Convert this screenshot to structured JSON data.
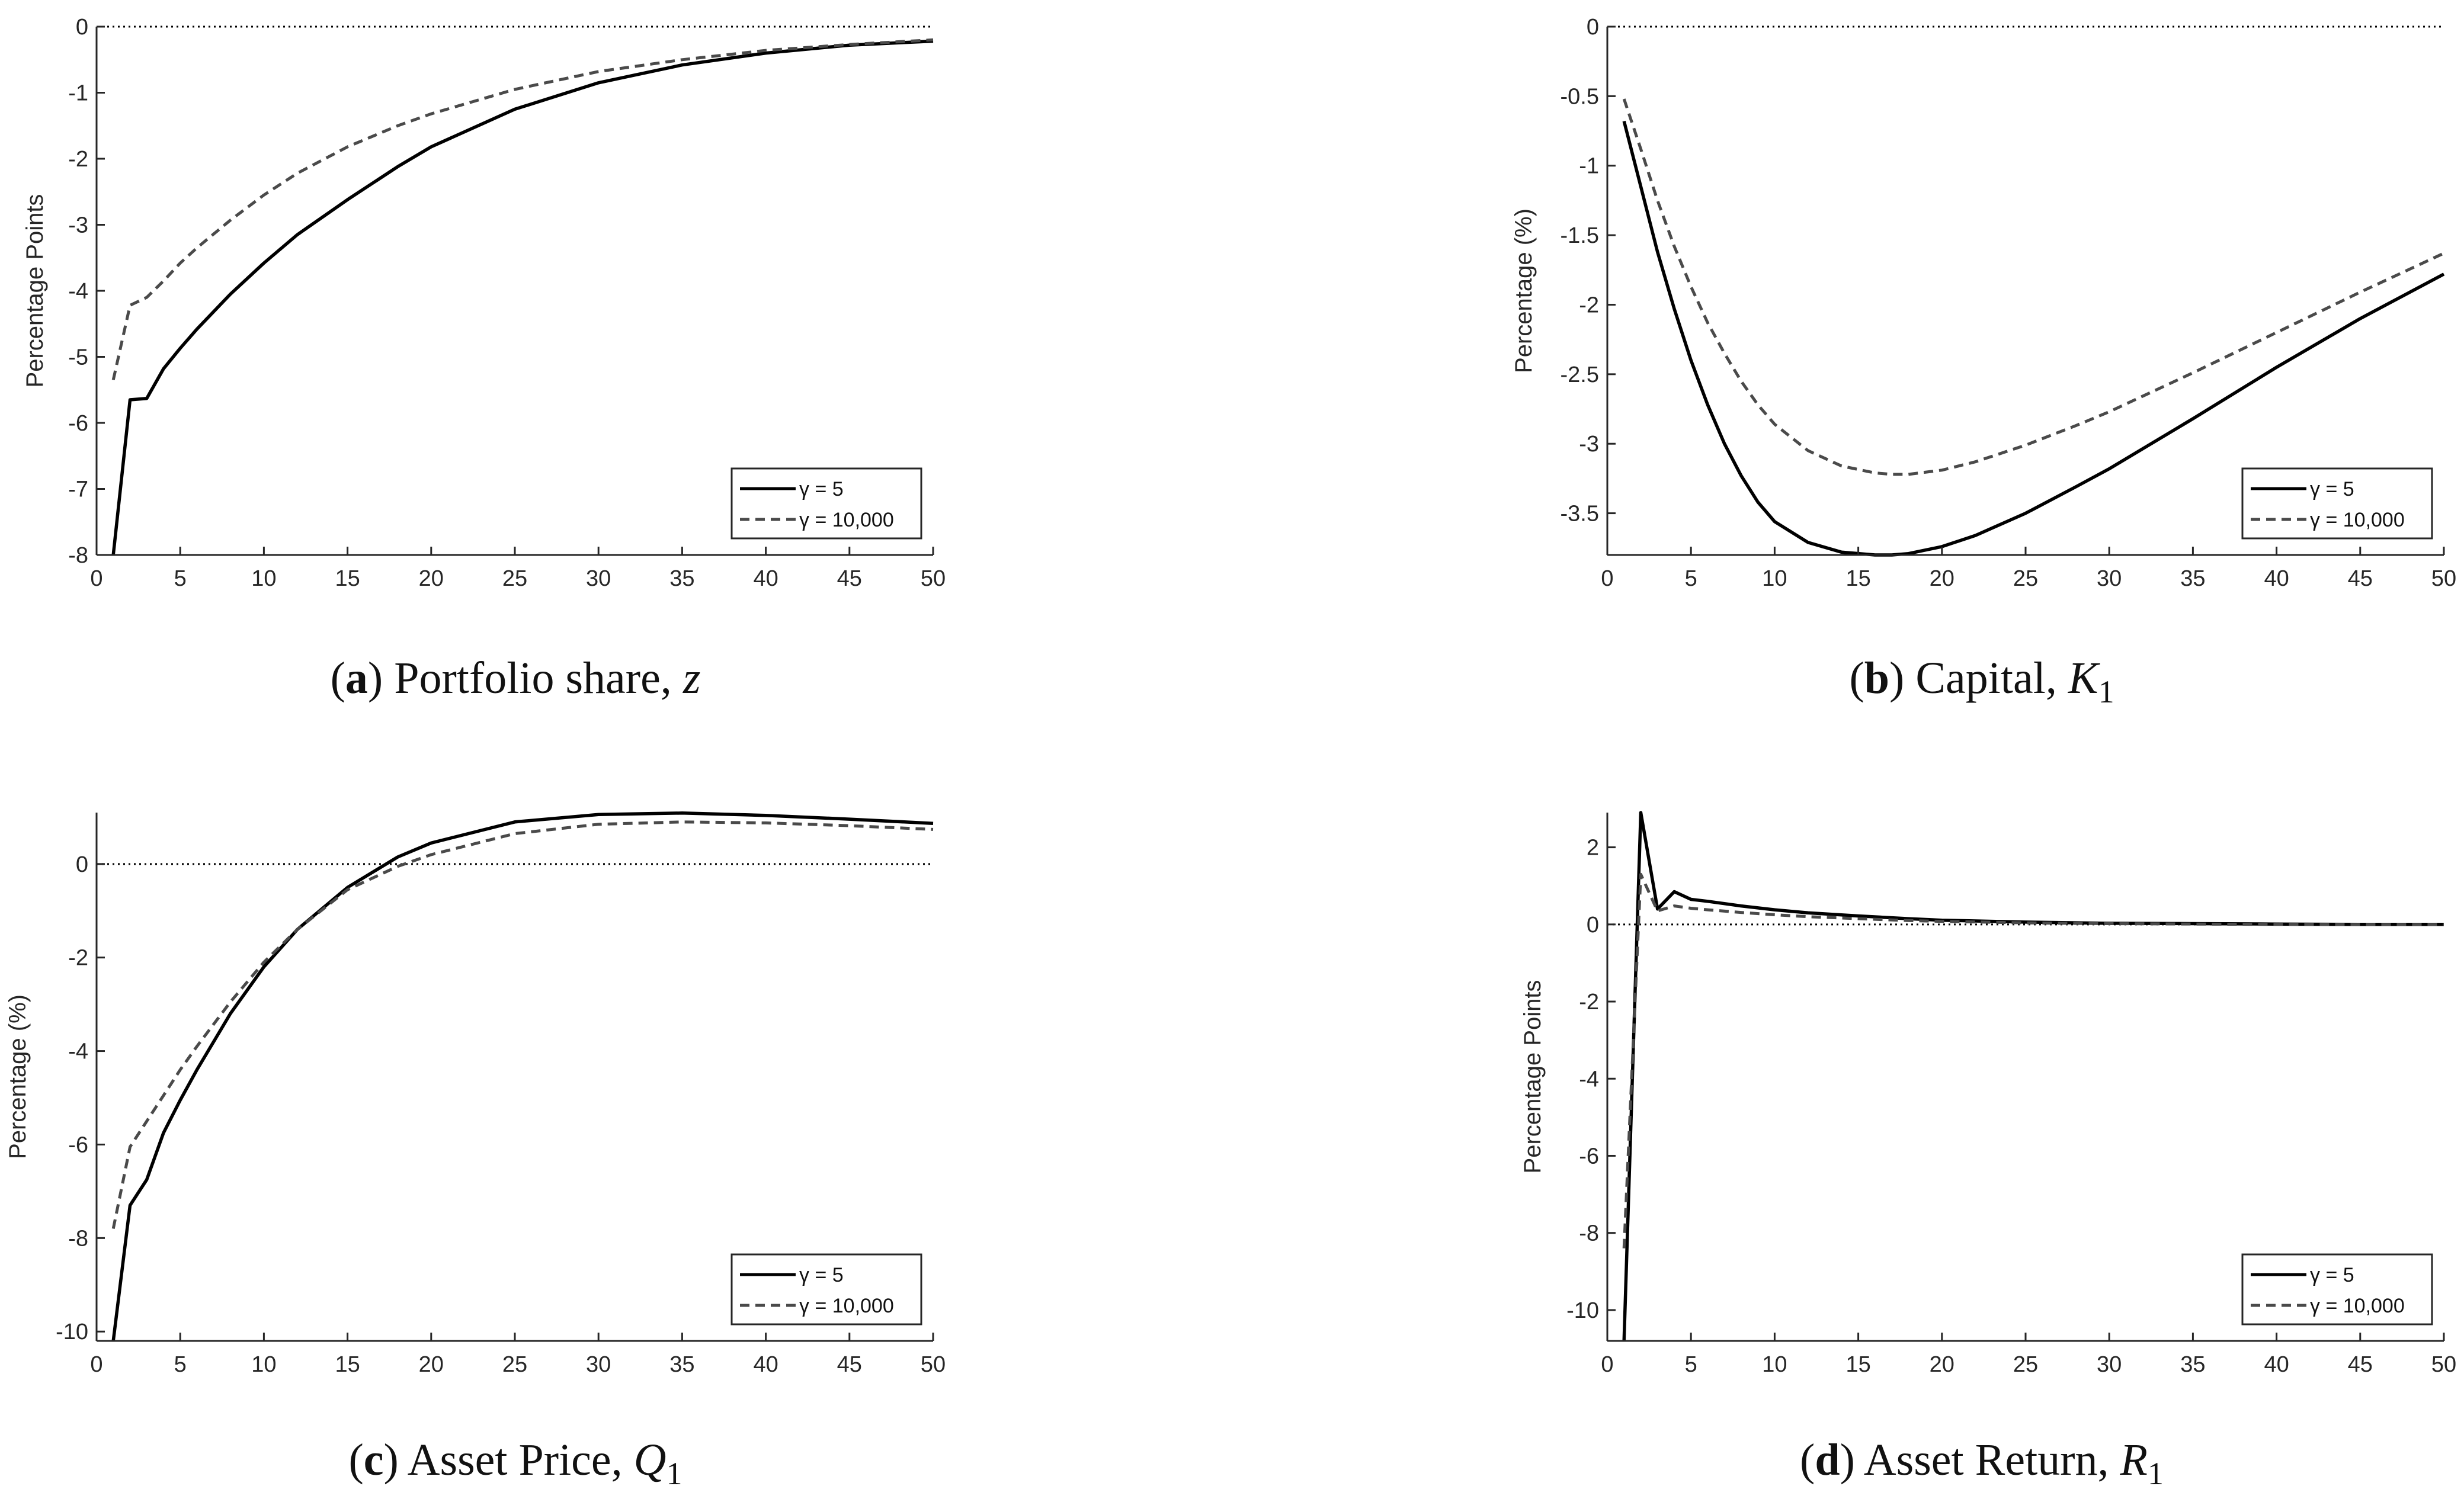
{
  "figure": {
    "panels": [
      {
        "id": "a",
        "caption_letter": "a",
        "caption_text": "Portfolio share, ",
        "caption_var": "z",
        "caption_sub": "",
        "ylabel": "Percentage Points"
      },
      {
        "id": "b",
        "caption_letter": "b",
        "caption_text": "Capital, ",
        "caption_var": "K",
        "caption_sub": "1",
        "ylabel": "Percentage (%)"
      },
      {
        "id": "c",
        "caption_letter": "c",
        "caption_text": "Asset Price, ",
        "caption_var": "Q",
        "caption_sub": "1",
        "ylabel": "Percentage (%)"
      },
      {
        "id": "d",
        "caption_letter": "d",
        "caption_text": "Asset Return, ",
        "caption_var": "R",
        "caption_sub": "1",
        "ylabel": "Percentage Points"
      }
    ]
  },
  "chart_data": [
    {
      "type": "line",
      "panel": "a",
      "title": "(a) Portfolio share, z",
      "xlabel": "",
      "ylabel": "Percentage Points",
      "xlim": [
        0,
        50
      ],
      "ylim": [
        -8,
        0
      ],
      "xticks": [
        "0",
        "5",
        "10",
        "15",
        "20",
        "25",
        "30",
        "35",
        "40",
        "45",
        "50"
      ],
      "yticks": [
        "0",
        "-1",
        "-2",
        "-3",
        "-4",
        "-5",
        "-6",
        "-7",
        "-8"
      ],
      "zero_line": true,
      "legend_position": "bottom-right",
      "series": [
        {
          "name": "γ = 5",
          "style": "solid",
          "points": [
            [
              1,
              -8.0
            ],
            [
              2,
              -5.65
            ],
            [
              3,
              -5.63
            ],
            [
              4,
              -5.18
            ],
            [
              5,
              -4.87
            ],
            [
              6,
              -4.58
            ],
            [
              8,
              -4.05
            ],
            [
              10,
              -3.58
            ],
            [
              12,
              -3.15
            ],
            [
              15,
              -2.62
            ],
            [
              18,
              -2.12
            ],
            [
              20,
              -1.82
            ],
            [
              25,
              -1.25
            ],
            [
              30,
              -0.85
            ],
            [
              35,
              -0.58
            ],
            [
              40,
              -0.4
            ],
            [
              45,
              -0.28
            ],
            [
              50,
              -0.22
            ]
          ]
        },
        {
          "name": "γ = 10,000",
          "style": "dashed",
          "points": [
            [
              1,
              -5.35
            ],
            [
              2,
              -4.22
            ],
            [
              3,
              -4.1
            ],
            [
              4,
              -3.85
            ],
            [
              5,
              -3.58
            ],
            [
              6,
              -3.35
            ],
            [
              8,
              -2.93
            ],
            [
              10,
              -2.55
            ],
            [
              12,
              -2.22
            ],
            [
              15,
              -1.82
            ],
            [
              18,
              -1.5
            ],
            [
              20,
              -1.32
            ],
            [
              25,
              -0.95
            ],
            [
              30,
              -0.68
            ],
            [
              35,
              -0.5
            ],
            [
              40,
              -0.36
            ],
            [
              45,
              -0.27
            ],
            [
              50,
              -0.2
            ]
          ]
        }
      ]
    },
    {
      "type": "line",
      "panel": "b",
      "title": "(b) Capital, K1",
      "xlabel": "",
      "ylabel": "Percentage (%)",
      "xlim": [
        0,
        50
      ],
      "ylim": [
        -3.8,
        0
      ],
      "xticks": [
        "0",
        "5",
        "10",
        "15",
        "20",
        "25",
        "30",
        "35",
        "40",
        "45",
        "50"
      ],
      "yticks": [
        "0",
        "-0.5",
        "-1",
        "-1.5",
        "-2",
        "-2.5",
        "-3",
        "-3.5"
      ],
      "zero_line": true,
      "legend_position": "bottom-right",
      "series": [
        {
          "name": "γ = 5",
          "style": "solid",
          "points": [
            [
              1,
              -0.68
            ],
            [
              2,
              -1.15
            ],
            [
              3,
              -1.62
            ],
            [
              4,
              -2.03
            ],
            [
              5,
              -2.4
            ],
            [
              6,
              -2.72
            ],
            [
              7,
              -3.0
            ],
            [
              8,
              -3.23
            ],
            [
              9,
              -3.42
            ],
            [
              10,
              -3.56
            ],
            [
              12,
              -3.71
            ],
            [
              14,
              -3.78
            ],
            [
              16,
              -3.8
            ],
            [
              17,
              -3.8
            ],
            [
              18,
              -3.79
            ],
            [
              20,
              -3.74
            ],
            [
              22,
              -3.66
            ],
            [
              25,
              -3.5
            ],
            [
              28,
              -3.31
            ],
            [
              30,
              -3.18
            ],
            [
              35,
              -2.82
            ],
            [
              40,
              -2.45
            ],
            [
              45,
              -2.1
            ],
            [
              50,
              -1.78
            ]
          ]
        },
        {
          "name": "γ = 10,000",
          "style": "dashed",
          "points": [
            [
              1,
              -0.52
            ],
            [
              2,
              -0.88
            ],
            [
              3,
              -1.25
            ],
            [
              4,
              -1.58
            ],
            [
              5,
              -1.87
            ],
            [
              6,
              -2.13
            ],
            [
              7,
              -2.35
            ],
            [
              8,
              -2.55
            ],
            [
              9,
              -2.72
            ],
            [
              10,
              -2.86
            ],
            [
              12,
              -3.05
            ],
            [
              14,
              -3.16
            ],
            [
              16,
              -3.21
            ],
            [
              17,
              -3.22
            ],
            [
              18,
              -3.22
            ],
            [
              20,
              -3.19
            ],
            [
              22,
              -3.13
            ],
            [
              25,
              -3.01
            ],
            [
              28,
              -2.87
            ],
            [
              30,
              -2.77
            ],
            [
              35,
              -2.49
            ],
            [
              40,
              -2.2
            ],
            [
              45,
              -1.91
            ],
            [
              50,
              -1.63
            ]
          ]
        }
      ]
    },
    {
      "type": "line",
      "panel": "c",
      "title": "(c) Asset Price, Q1",
      "xlabel": "",
      "ylabel": "Percentage (%)",
      "xlim": [
        0,
        50
      ],
      "ylim": [
        -10.2,
        1.1
      ],
      "xticks": [
        "0",
        "5",
        "10",
        "15",
        "20",
        "25",
        "30",
        "35",
        "40",
        "45",
        "50"
      ],
      "yticks": [
        "0",
        "-2",
        "-4",
        "-6",
        "-8",
        "-10"
      ],
      "zero_line": true,
      "legend_position": "bottom-right",
      "series": [
        {
          "name": "γ = 5",
          "style": "solid",
          "points": [
            [
              1,
              -10.2
            ],
            [
              2,
              -7.3
            ],
            [
              3,
              -6.75
            ],
            [
              4,
              -5.75
            ],
            [
              5,
              -5.05
            ],
            [
              6,
              -4.4
            ],
            [
              8,
              -3.2
            ],
            [
              10,
              -2.2
            ],
            [
              12,
              -1.4
            ],
            [
              15,
              -0.5
            ],
            [
              18,
              0.15
            ],
            [
              20,
              0.45
            ],
            [
              25,
              0.9
            ],
            [
              30,
              1.06
            ],
            [
              35,
              1.09
            ],
            [
              40,
              1.04
            ],
            [
              45,
              0.96
            ],
            [
              50,
              0.87
            ]
          ]
        },
        {
          "name": "γ = 10,000",
          "style": "dashed",
          "points": [
            [
              1,
              -7.8
            ],
            [
              2,
              -6.05
            ],
            [
              3,
              -5.5
            ],
            [
              4,
              -4.95
            ],
            [
              5,
              -4.4
            ],
            [
              6,
              -3.9
            ],
            [
              8,
              -2.95
            ],
            [
              10,
              -2.1
            ],
            [
              12,
              -1.4
            ],
            [
              15,
              -0.55
            ],
            [
              18,
              -0.05
            ],
            [
              20,
              0.2
            ],
            [
              25,
              0.65
            ],
            [
              30,
              0.85
            ],
            [
              35,
              0.9
            ],
            [
              40,
              0.88
            ],
            [
              45,
              0.82
            ],
            [
              50,
              0.74
            ]
          ]
        }
      ]
    },
    {
      "type": "line",
      "panel": "d",
      "title": "(d) Asset Return, R1",
      "xlabel": "",
      "ylabel": "Percentage Points",
      "xlim": [
        0,
        50
      ],
      "ylim": [
        -10.8,
        2.9
      ],
      "xticks": [
        "0",
        "5",
        "10",
        "15",
        "20",
        "25",
        "30",
        "35",
        "40",
        "45",
        "50"
      ],
      "yticks": [
        "2",
        "0",
        "-2",
        "-4",
        "-6",
        "-8",
        "-10"
      ],
      "zero_line": true,
      "legend_position": "bottom-right",
      "series": [
        {
          "name": "γ = 5",
          "style": "solid",
          "points": [
            [
              1,
              -10.8
            ],
            [
              2,
              2.9
            ],
            [
              3,
              0.4
            ],
            [
              4,
              0.85
            ],
            [
              5,
              0.65
            ],
            [
              6,
              0.6
            ],
            [
              8,
              0.48
            ],
            [
              10,
              0.38
            ],
            [
              12,
              0.3
            ],
            [
              15,
              0.22
            ],
            [
              18,
              0.15
            ],
            [
              20,
              0.11
            ],
            [
              25,
              0.06
            ],
            [
              30,
              0.03
            ],
            [
              35,
              0.02
            ],
            [
              40,
              0.01
            ],
            [
              45,
              0.0
            ],
            [
              50,
              0.0
            ]
          ]
        },
        {
          "name": "γ = 10,000",
          "style": "dashed",
          "points": [
            [
              1,
              -8.4
            ],
            [
              2,
              1.3
            ],
            [
              3,
              0.35
            ],
            [
              4,
              0.48
            ],
            [
              5,
              0.42
            ],
            [
              6,
              0.38
            ],
            [
              8,
              0.31
            ],
            [
              10,
              0.25
            ],
            [
              12,
              0.2
            ],
            [
              15,
              0.15
            ],
            [
              18,
              0.1
            ],
            [
              20,
              0.08
            ],
            [
              25,
              0.04
            ],
            [
              30,
              0.02
            ],
            [
              35,
              0.01
            ],
            [
              40,
              0.0
            ],
            [
              45,
              0.0
            ],
            [
              50,
              0.0
            ]
          ]
        }
      ]
    }
  ]
}
